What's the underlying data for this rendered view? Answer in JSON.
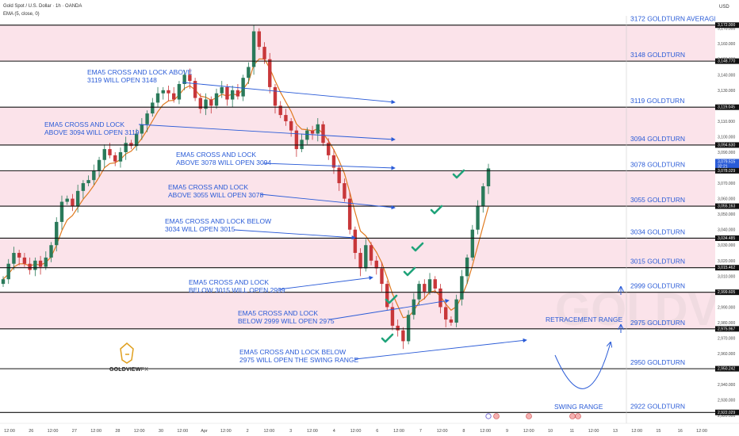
{
  "header": {
    "title": "Gold Spot / U.S. Dollar · 1h · OANDA",
    "indicator": "EMA (5, close, 0)"
  },
  "axis_currency": "USD",
  "brand": {
    "logo_main": "GOLDVIEW",
    "logo_sub": "FX"
  },
  "colors": {
    "zone_pink": "#fbe3ea",
    "level_line": "#111111",
    "annotation_blue": "#2a5bd7",
    "candle_up": "#2a7a5a",
    "candle_down": "#c8373a",
    "ema": "#e07a20",
    "check": "#1fa37a"
  },
  "chart_data": {
    "type": "candlestick",
    "title": "Gold Spot / U.S. Dollar · 1h · OANDA",
    "indicator": "EMA (5, close, 0)",
    "ylim": [
      2915,
      3178
    ],
    "y_ticks": [
      2920,
      2930,
      2940,
      2950,
      2960,
      2970,
      2980,
      2990,
      3000,
      3010,
      3020,
      3030,
      3040,
      3050,
      3060,
      3070,
      3080,
      3090,
      3100,
      3110,
      3120,
      3130,
      3140,
      3150,
      3160,
      3170
    ],
    "y_tick_labels": [
      "2,920.000",
      "2,930.000",
      "2,940.000",
      "2,950.000",
      "2,960.000",
      "2,970.000",
      "2,980.000",
      "2,990.000",
      "3,000.000",
      "3,010.000",
      "3,020.000",
      "3,030.000",
      "3,040.000",
      "3,050.000",
      "3,060.000",
      "3,070.000",
      "3,080.000",
      "3,090.000",
      "3,100.000",
      "3,110.000",
      "3,120.000",
      "3,130.000",
      "3,140.000",
      "3,150.000",
      "3,160.000",
      "3,170.000"
    ],
    "x_tick_labels": [
      "12:00",
      "26",
      "12:00",
      "27",
      "12:00",
      "28",
      "12:00",
      "30",
      "12:00",
      "Apr",
      "12:00",
      "2",
      "12:00",
      "3",
      "12:00",
      "4",
      "12:00",
      "6",
      "12:00",
      "7",
      "12:00",
      "8",
      "12:00",
      "9",
      "12:00",
      "10",
      "11",
      "12:00",
      "13",
      "12:00",
      "15",
      "16",
      "12:00"
    ],
    "level_price_labels": [
      "3,172.000",
      "3,148.770",
      "3,119.045",
      "3,094.630",
      "3,079.515",
      "3,078.029",
      "3,055.163",
      "3,034.485",
      "3,015.462",
      "2,999.605",
      "2,975.967",
      "2,950.242",
      "2,922.029"
    ],
    "current_price_label": {
      "price": "3,079.515",
      "countdown": "32:21"
    },
    "levels": [
      {
        "price": 3172,
        "label": "3172 GOLDTURN AVERAGE"
      },
      {
        "price": 3148.77,
        "label": "3148 GOLDTURN"
      },
      {
        "price": 3119.045,
        "label": "3119 GOLDTURN"
      },
      {
        "price": 3094.63,
        "label": "3094 GOLDTURN"
      },
      {
        "price": 3078.029,
        "label": "3078 GOLDTURN"
      },
      {
        "price": 3055.163,
        "label": "3055 GOLDTURN"
      },
      {
        "price": 3034.485,
        "label": "3034 GOLDTURN"
      },
      {
        "price": 3015.462,
        "label": "3015 GOLDTURN"
      },
      {
        "price": 2999.605,
        "label": "2999 GOLDTURN"
      },
      {
        "price": 2975.967,
        "label": "2975 GOLDTURN"
      },
      {
        "price": 2950.242,
        "label": "2950 GOLDTURN"
      },
      {
        "price": 2922.029,
        "label": "2922 GOLDTURN"
      }
    ],
    "annotations": [
      {
        "lines": [
          "EMA5 CROSS AND LOCK ABOVE",
          "3119 WILL OPEN 3148"
        ]
      },
      {
        "lines": [
          "EMA5 CROSS AND LOCK",
          "ABOVE 3094 WILL OPEN 3119"
        ]
      },
      {
        "lines": [
          "EMA5 CROSS AND LOCK",
          "ABOVE 3078 WILL OPEN 3094"
        ]
      },
      {
        "lines": [
          "EMA5 CROSS AND LOCK",
          "ABOVE 3055 WILL OPEN 3078"
        ]
      },
      {
        "lines": [
          "EMA5 CROSS AND LOCK BELOW",
          "3034 WILL OPEN 3015"
        ]
      },
      {
        "lines": [
          "EMA5 CROSS AND LOCK",
          "BELOW 3015 WILL OPEN 2999"
        ]
      },
      {
        "lines": [
          "EMA5 CROSS AND LOCK",
          "BELOW 2999 WILL OPEN 2975"
        ]
      },
      {
        "lines": [
          "EMA5 CROSS AND LOCK BELOW",
          "2975 WILL OPEN THE SWING RANGE"
        ]
      },
      {
        "lines": [
          "RETRACEMENT RANGE"
        ]
      },
      {
        "lines": [
          "SWING RANGE"
        ]
      }
    ],
    "candles_close_path": [
      3008,
      3018,
      3025,
      3022,
      3018,
      3014,
      3020,
      3016,
      3022,
      3030,
      3045,
      3058,
      3060,
      3055,
      3065,
      3070,
      3072,
      3078,
      3085,
      3092,
      3088,
      3084,
      3090,
      3096,
      3094,
      3102,
      3108,
      3115,
      3122,
      3128,
      3130,
      3128,
      3124,
      3134,
      3140,
      3136,
      3125,
      3118,
      3124,
      3120,
      3128,
      3132,
      3124,
      3130,
      3126,
      3138,
      3145,
      3168,
      3158,
      3150,
      3132,
      3120,
      3114,
      3110,
      3104,
      3092,
      3098,
      3104,
      3102,
      3108,
      3096,
      3088,
      3080,
      3070,
      3060,
      3040,
      3025,
      3015,
      3030,
      3020,
      3015,
      3005,
      2990,
      2978,
      2975,
      2968,
      2985,
      2995,
      3005,
      3000,
      3008,
      3002,
      2990,
      2982,
      2980,
      2995,
      3010,
      3022,
      3040,
      3055,
      3068,
      3079.515
    ],
    "ema_label": "EMA 5"
  }
}
